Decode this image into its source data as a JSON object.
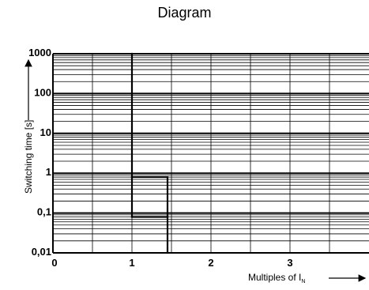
{
  "chart_data": {
    "type": "line",
    "title": "Diagram",
    "xlabel": "Multiples of I",
    "xlabel_subscript": "N",
    "ylabel": "Switching time [s]",
    "y_scale": "log",
    "xlim": [
      0,
      4
    ],
    "ylim": [
      0.01,
      1000
    ],
    "x_ticks": [
      {
        "value": 0,
        "label": "0"
      },
      {
        "value": 1,
        "label": "1"
      },
      {
        "value": 2,
        "label": "2"
      },
      {
        "value": 3,
        "label": "3"
      }
    ],
    "y_ticks": [
      {
        "value": 0.01,
        "label": "0,01"
      },
      {
        "value": 0.1,
        "label": "0,1"
      },
      {
        "value": 1,
        "label": "1"
      },
      {
        "value": 10,
        "label": "10"
      },
      {
        "value": 100,
        "label": "100"
      },
      {
        "value": 1000,
        "label": "1000"
      }
    ],
    "grid": true,
    "series": [
      {
        "color": "#000000",
        "segments": [
          [
            [
              1.0,
              1000
            ],
            [
              1.0,
              0.8
            ]
          ],
          [
            [
              1.0,
              0.8
            ],
            [
              1.45,
              0.8
            ]
          ],
          [
            [
              1.45,
              0.8
            ],
            [
              1.45,
              0.08
            ]
          ],
          [
            [
              1.45,
              0.08
            ],
            [
              1.0,
              0.08
            ]
          ],
          [
            [
              1.0,
              0.08
            ],
            [
              1.0,
              0.8
            ]
          ],
          [
            [
              1.45,
              0.08
            ],
            [
              1.45,
              0.01
            ]
          ]
        ]
      }
    ]
  }
}
